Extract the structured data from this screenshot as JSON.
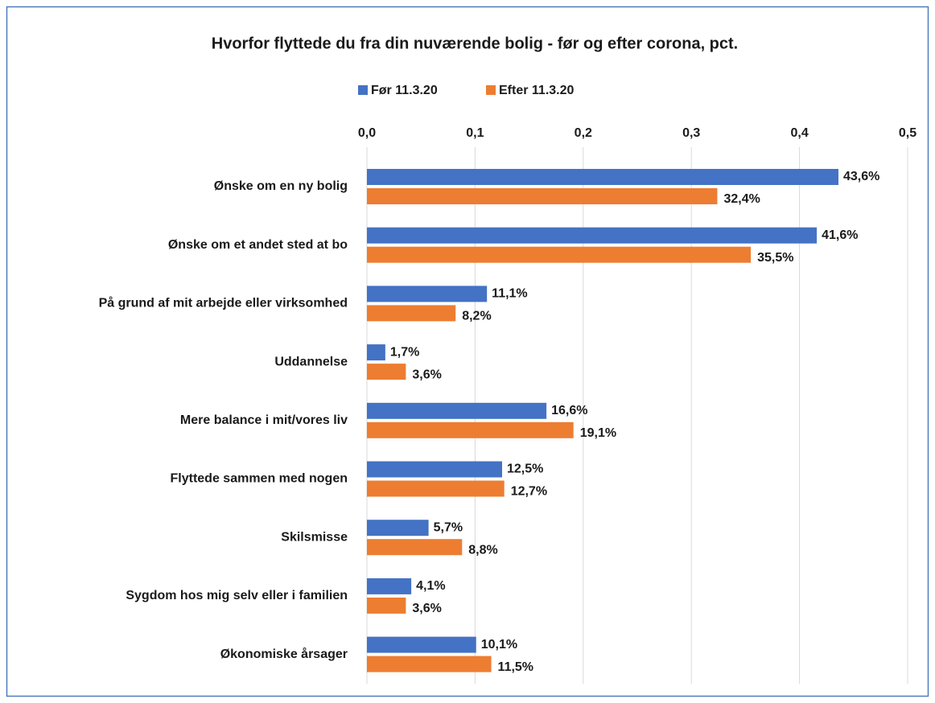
{
  "chart_data": {
    "type": "bar",
    "orientation": "horizontal",
    "title": "Hvorfor flyttede du fra din nuværende bolig - før og efter corona, pct.",
    "categories": [
      "Ønske om en ny bolig",
      "Ønske om et andet sted at bo",
      "På grund af mit arbejde eller virksomhed",
      "Uddannelse",
      "Mere balance i mit/vores liv",
      "Flyttede sammen med nogen",
      "Skilsmisse",
      "Sygdom hos mig selv eller i familien",
      "Økonomiske årsager"
    ],
    "series": [
      {
        "name": "Før 11.3.20",
        "color": "#4472c4",
        "values": [
          0.436,
          0.416,
          0.111,
          0.017,
          0.166,
          0.125,
          0.057,
          0.041,
          0.101
        ],
        "value_labels": [
          "43,6%",
          "41,6%",
          "11,1%",
          "1,7%",
          "16,6%",
          "12,5%",
          "5,7%",
          "4,1%",
          "10,1%"
        ]
      },
      {
        "name": "Efter 11.3.20",
        "color": "#ed7d31",
        "values": [
          0.324,
          0.355,
          0.082,
          0.036,
          0.191,
          0.127,
          0.088,
          0.036,
          0.115
        ],
        "value_labels": [
          "32,4%",
          "35,5%",
          "8,2%",
          "3,6%",
          "19,1%",
          "12,7%",
          "8,8%",
          "3,6%",
          "11,5%"
        ]
      }
    ],
    "xlim": [
      0,
      0.5
    ],
    "xticks": [
      {
        "value": 0,
        "label": "0,0"
      },
      {
        "value": 0.1,
        "label": "0,1"
      },
      {
        "value": 0.2,
        "label": "0,2"
      },
      {
        "value": 0.3,
        "label": "0,3"
      },
      {
        "value": 0.4,
        "label": "0,4"
      },
      {
        "value": 0.5,
        "label": "0,5"
      }
    ],
    "grid": true,
    "legend": "top"
  }
}
